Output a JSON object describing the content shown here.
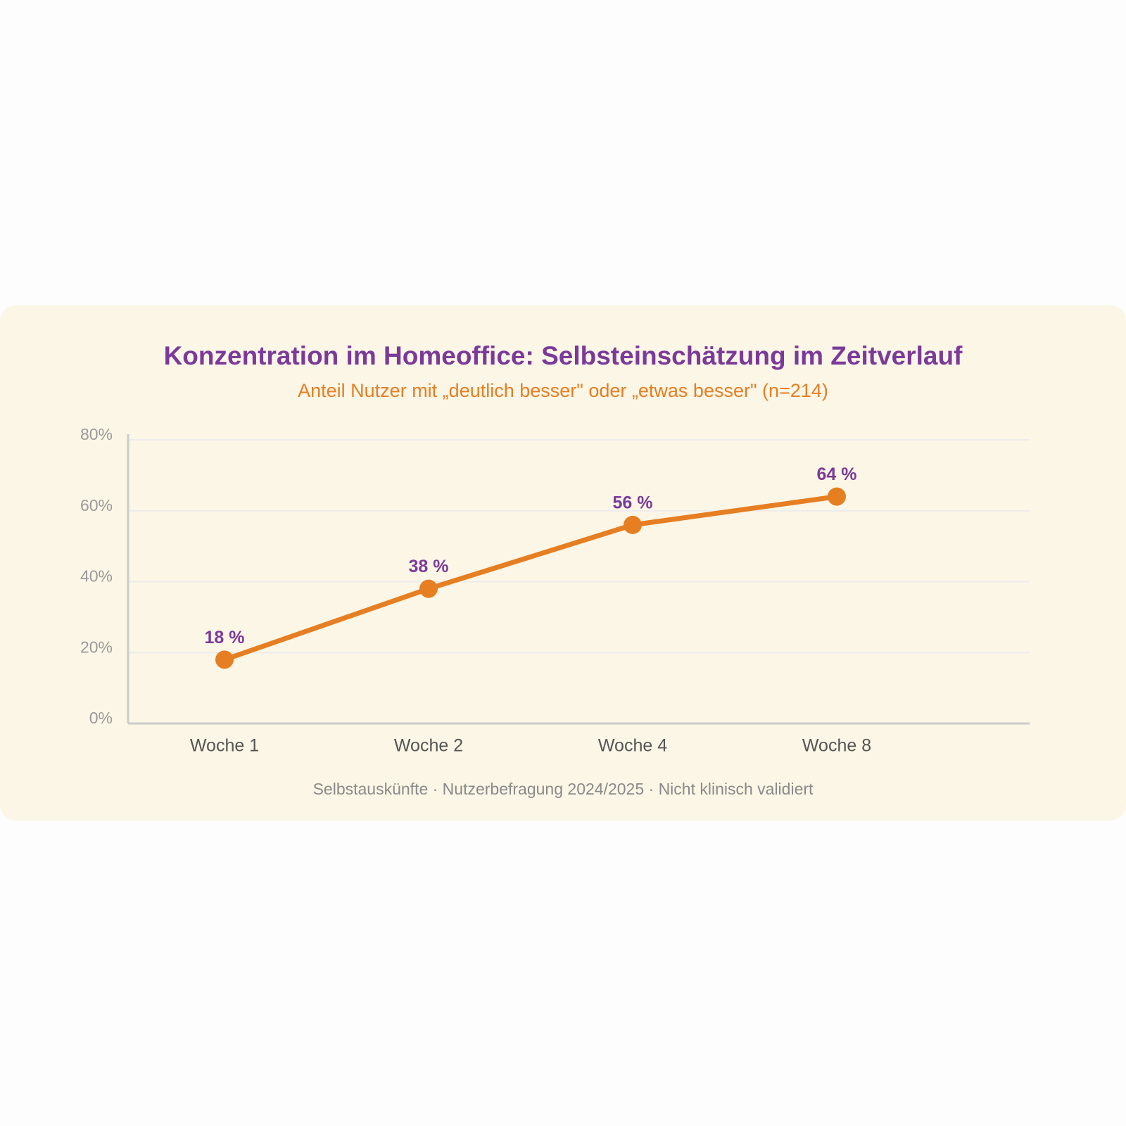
{
  "chart_data": {
    "type": "line",
    "title": "Konzentration im Homeoffice: Selbsteinschätzung im Zeitverlauf",
    "subtitle": "Anteil Nutzer mit „deutlich besser\" oder „etwas besser\" (n=214)",
    "footnote": "Selbstauskünfte · Nutzerbefragung 2024/2025 · Nicht klinisch validiert",
    "categories": [
      "Woche 1",
      "Woche 2",
      "Woche 4",
      "Woche 8"
    ],
    "series": [
      {
        "color": "#e67e22",
        "values": [
          18,
          38,
          56,
          64
        ],
        "value_labels": [
          "18 %",
          "38 %",
          "56 %",
          "64 %"
        ]
      }
    ],
    "ylim": [
      0,
      80
    ],
    "yticks": [
      {
        "value": 0,
        "label": "0%"
      },
      {
        "value": 20,
        "label": "20%"
      },
      {
        "value": 40,
        "label": "40%"
      },
      {
        "value": 60,
        "label": "60%"
      },
      {
        "value": 80,
        "label": "80%"
      }
    ],
    "grid": true
  }
}
